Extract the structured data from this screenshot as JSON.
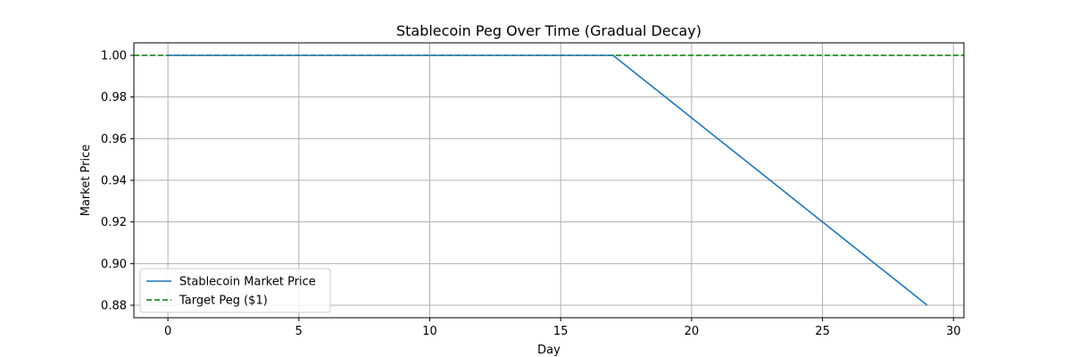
{
  "chart_data": {
    "type": "line",
    "title": "Stablecoin Peg Over Time (Gradual Decay)",
    "xlabel": "Day",
    "ylabel": "Market Price",
    "xlim": [
      -1.3,
      30.4
    ],
    "ylim": [
      0.874,
      1.006
    ],
    "x_ticks": [
      0,
      5,
      10,
      15,
      20,
      25,
      30
    ],
    "y_ticks": [
      0.88,
      0.9,
      0.92,
      0.94,
      0.96,
      0.98,
      1.0
    ],
    "y_tick_labels": [
      "0.88",
      "0.90",
      "0.92",
      "0.94",
      "0.96",
      "0.98",
      "1.00"
    ],
    "grid": true,
    "legend_position": "lower-left",
    "series": [
      {
        "name": "Stablecoin Market Price",
        "color": "#1f77b4",
        "style": "solid",
        "x": [
          0,
          1,
          2,
          3,
          4,
          5,
          6,
          7,
          8,
          9,
          10,
          11,
          12,
          13,
          14,
          15,
          16,
          17,
          18,
          19,
          20,
          21,
          22,
          23,
          24,
          25,
          26,
          27,
          28,
          29
        ],
        "values": [
          1.0,
          1.0,
          1.0,
          1.0,
          1.0,
          1.0,
          1.0,
          1.0,
          1.0,
          1.0,
          1.0,
          1.0,
          1.0,
          1.0,
          1.0,
          1.0,
          1.0,
          1.0,
          0.99,
          0.98,
          0.97,
          0.96,
          0.95,
          0.94,
          0.93,
          0.92,
          0.91,
          0.9,
          0.89,
          0.88
        ]
      }
    ],
    "reference_lines": [
      {
        "name": "Target Peg ($1)",
        "y": 1.0,
        "color": "#008000",
        "style": "dashed"
      }
    ]
  }
}
